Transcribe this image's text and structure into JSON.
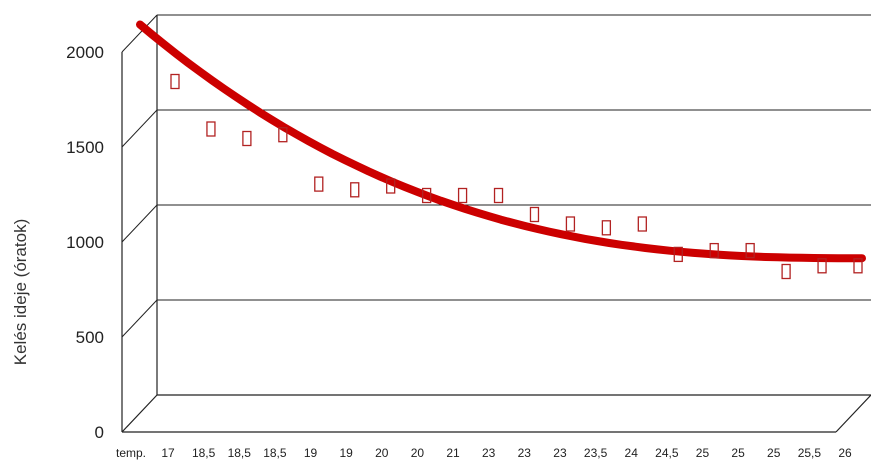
{
  "chart_data": {
    "type": "scatter",
    "ylabel": "Kelés ideje (óratok)",
    "yticks": [
      "0",
      "500",
      "1000",
      "1500",
      "2000"
    ],
    "ylim": [
      0,
      2000
    ],
    "grid": true,
    "x_prefix": "temp.",
    "categories": [
      "17",
      "18,5",
      "18,5",
      "18,5",
      "19",
      "19",
      "20",
      "20",
      "21",
      "23",
      "23",
      "23",
      "23,5",
      "24",
      "24,5",
      "25",
      "25",
      "25",
      "25,5",
      "26"
    ],
    "values": [
      1650,
      1400,
      1350,
      1370,
      1110,
      1080,
      1100,
      1050,
      1050,
      1050,
      950,
      900,
      880,
      900,
      740,
      760,
      760,
      650,
      680,
      680
    ],
    "series": [
      {
        "name": "",
        "style": "hollow-rect",
        "color": "#b22222"
      },
      {
        "name": "",
        "style": "trend-curve",
        "color": "#cc0000",
        "start": 1950,
        "end": 720
      }
    ]
  }
}
